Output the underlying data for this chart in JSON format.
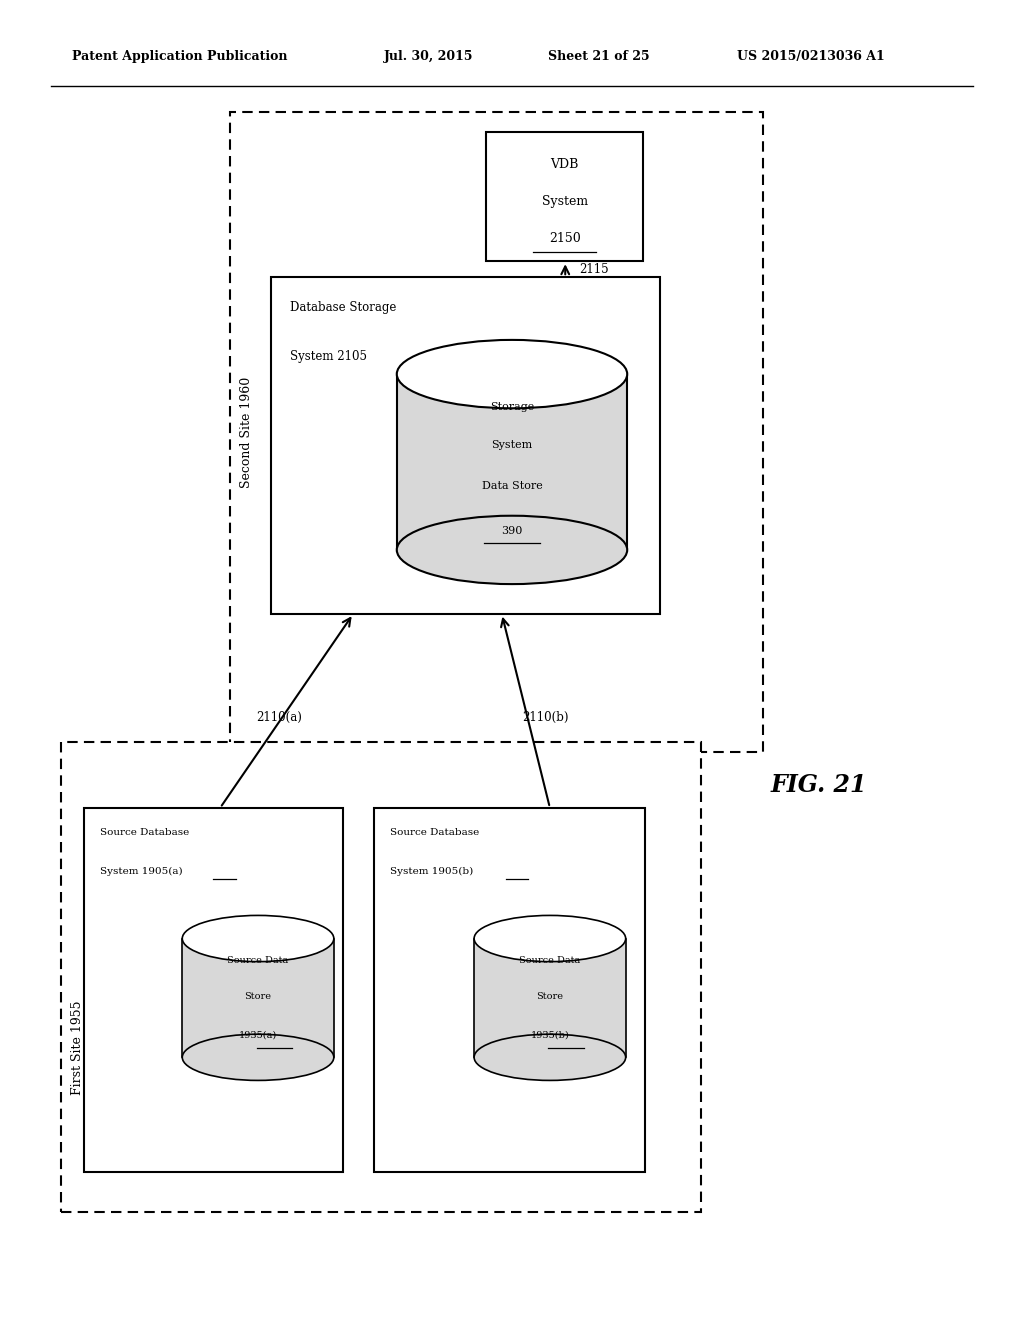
{
  "bg_color": "#ffffff",
  "header_text": "Patent Application Publication",
  "header_date": "Jul. 30, 2015",
  "header_sheet": "Sheet 21 of 25",
  "header_patent": "US 2015/0213036 A1",
  "fig_label": "FIG. 21",
  "second_site_label": "Second Site 1960",
  "first_site_label": "First Site 1955",
  "db_storage_label1": "Database Storage",
  "db_storage_label2": "System 2105",
  "storage_cyl_label1": "Storage",
  "storage_cyl_label2": "System",
  "storage_cyl_label3": "Data Store",
  "storage_cyl_label4": "390",
  "vdb_label1": "VDB",
  "vdb_label2": "System",
  "vdb_label3": "2150",
  "arrow_2115_label": "2115",
  "src_db_a_label1": "Source Database",
  "src_db_a_label2": "System 1905(a)",
  "src_cyl_a_label1": "Source Data",
  "src_cyl_a_label2": "Store",
  "src_cyl_a_label3": "1935(a)",
  "src_db_b_label1": "Source Database",
  "src_db_b_label2": "System 1905(b)",
  "src_cyl_b_label1": "Source Data",
  "src_cyl_b_label2": "Store",
  "src_cyl_b_label3": "1935(b)",
  "arrow_a_label": "2110(a)",
  "arrow_b_label": "2110(b)"
}
